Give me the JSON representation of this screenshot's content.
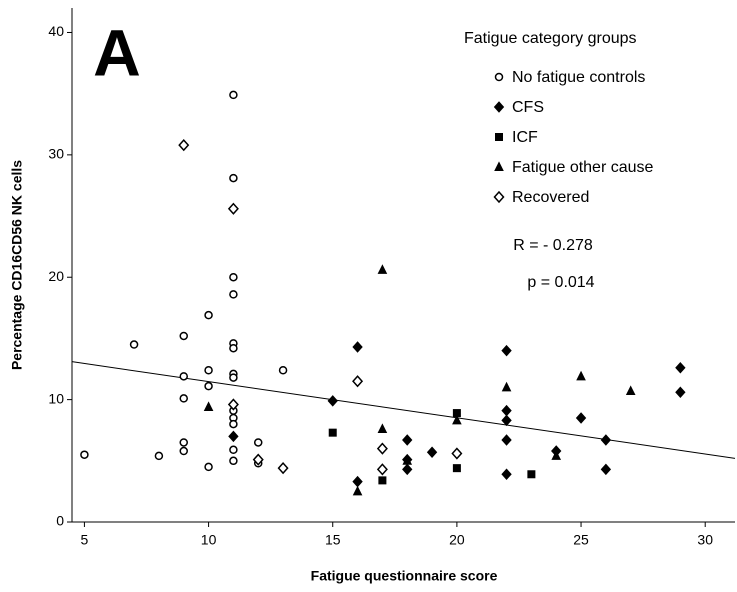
{
  "chart_data": {
    "type": "scatter",
    "panel_label": "A",
    "xlabel": "Fatigue questionnaire score",
    "ylabel": "Percentage CD16CD56 NK cells",
    "legend_title": "Fatigue category groups",
    "annotations": [
      "R = - 0.278",
      "p = 0.014"
    ],
    "xlim": [
      4.5,
      31.2
    ],
    "ylim": [
      0,
      42
    ],
    "xticks": [
      5,
      10,
      15,
      20,
      25,
      30
    ],
    "yticks": [
      0,
      10,
      20,
      30,
      40
    ],
    "series": [
      {
        "name": "No fatigue controls",
        "marker": "circle-open",
        "color": "#000000",
        "x": [
          5,
          7,
          8,
          9,
          9,
          9,
          9,
          9,
          10,
          10,
          10,
          10,
          11,
          11,
          11,
          11,
          11,
          11,
          11,
          11,
          11,
          11,
          11,
          11,
          11,
          12,
          12,
          13
        ],
        "values": [
          5.5,
          14.5,
          5.4,
          15.2,
          11.9,
          10.1,
          6.5,
          5.8,
          16.9,
          12.4,
          11.1,
          4.5,
          34.9,
          28.1,
          20.0,
          18.6,
          14.6,
          14.2,
          12.1,
          11.8,
          9.1,
          8.5,
          8.0,
          5.9,
          5.0,
          6.5,
          4.8,
          12.4
        ]
      },
      {
        "name": "CFS",
        "marker": "diamond-filled",
        "color": "#000000",
        "x": [
          11,
          15,
          16,
          16,
          18,
          18,
          18,
          19,
          22,
          22,
          22,
          22,
          22,
          24,
          25,
          26,
          26,
          29,
          29
        ],
        "values": [
          7.0,
          9.9,
          14.3,
          3.3,
          6.7,
          5.1,
          4.3,
          5.7,
          14.0,
          9.1,
          8.3,
          6.7,
          3.9,
          5.8,
          8.5,
          6.7,
          4.3,
          12.6,
          10.6
        ]
      },
      {
        "name": "ICF",
        "marker": "square-filled",
        "color": "#000000",
        "x": [
          15,
          17,
          20,
          20,
          23
        ],
        "values": [
          7.3,
          3.4,
          8.9,
          4.4,
          3.9
        ]
      },
      {
        "name": "Fatigue other cause",
        "marker": "triangle-filled",
        "color": "#000000",
        "x": [
          10,
          16,
          17,
          17,
          18,
          20,
          22,
          24,
          25,
          27
        ],
        "values": [
          9.4,
          2.5,
          20.6,
          7.6,
          5.0,
          8.3,
          11.0,
          5.4,
          11.9,
          10.7
        ]
      },
      {
        "name": "Recovered",
        "marker": "diamond-open",
        "color": "#000000",
        "x": [
          9,
          11,
          11,
          12,
          13,
          16,
          17,
          17,
          20
        ],
        "values": [
          30.8,
          25.6,
          9.6,
          5.1,
          4.4,
          11.5,
          6.0,
          4.3,
          5.6
        ]
      }
    ],
    "fit": {
      "x": [
        4.5,
        31.2
      ],
      "values": [
        13.1,
        5.2
      ],
      "color": "#000000"
    }
  }
}
